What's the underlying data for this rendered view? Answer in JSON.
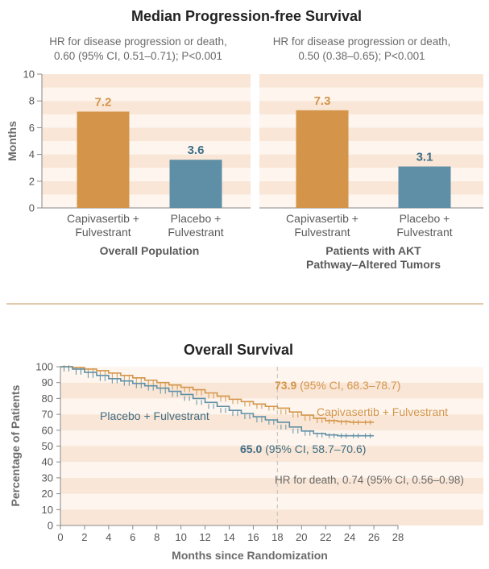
{
  "colors": {
    "capivasertib": "#D4954A",
    "placebo": "#5E8FA6",
    "placebo_text": "#3F6E86",
    "band_dark": "#F9E6D6",
    "band_light": "#FDF5EE",
    "divider": "#D9B891",
    "axis": "#888888"
  },
  "chart_data": [
    {
      "type": "bar",
      "title": "Median Progression-free Survival",
      "ylabel": "Months",
      "ylim": [
        0,
        10
      ],
      "yticks": [
        "0",
        "2",
        "4",
        "6",
        "8",
        "10"
      ],
      "panels": [
        {
          "hr_line1": "HR for disease progression or death,",
          "hr_line2": "0.60 (95% CI, 0.51–0.71); P<0.001",
          "group_line1": "Overall Population",
          "group_line2": "",
          "bars": [
            {
              "label_line1": "Capivasertib +",
              "label_line2": "Fulvestrant",
              "value": 7.2,
              "value_label": "7.2",
              "color_key": "capivasertib"
            },
            {
              "label_line1": "Placebo +",
              "label_line2": "Fulvestrant",
              "value": 3.6,
              "value_label": "3.6",
              "color_key": "placebo"
            }
          ]
        },
        {
          "hr_line1": "HR for disease progression or death,",
          "hr_line2": "0.50 (0.38–0.65); P<0.001",
          "group_line1": "Patients with AKT",
          "group_line2": "Pathway–Altered Tumors",
          "bars": [
            {
              "label_line1": "Capivasertib +",
              "label_line2": "Fulvestrant",
              "value": 7.3,
              "value_label": "7.3",
              "color_key": "capivasertib"
            },
            {
              "label_line1": "Placebo +",
              "label_line2": "Fulvestrant",
              "value": 3.1,
              "value_label": "3.1",
              "color_key": "placebo"
            }
          ]
        }
      ]
    },
    {
      "type": "line",
      "title": "Overall Survival",
      "xlabel": "Months since Randomization",
      "ylabel": "Percentage of Patients",
      "xlim": [
        0,
        28
      ],
      "ylim": [
        0,
        100
      ],
      "xticks": [
        "0",
        "2",
        "4",
        "6",
        "8",
        "10",
        "12",
        "14",
        "16",
        "18",
        "20",
        "22",
        "24",
        "26",
        "28"
      ],
      "yticks": [
        "0",
        "10",
        "20",
        "30",
        "40",
        "50",
        "60",
        "70",
        "80",
        "90",
        "100"
      ],
      "reference_month": 18,
      "hr_text": "HR for death, 0.74 (95% CI, 0.56–0.98)",
      "series": [
        {
          "name": "Capivasertib + Fulvestrant",
          "color_key": "capivasertib",
          "x": [
            0,
            1,
            2,
            3,
            4,
            5,
            6,
            7,
            8,
            9,
            10,
            11,
            12,
            13,
            14,
            15,
            16,
            17,
            18,
            19,
            20,
            21,
            22,
            23,
            24,
            25,
            26
          ],
          "y": [
            100,
            99.5,
            98.5,
            97.5,
            96,
            94.5,
            93,
            91.5,
            90,
            88.5,
            87,
            85.5,
            83.5,
            81.5,
            79.5,
            78,
            76.5,
            75,
            73.9,
            71.5,
            69.5,
            67.5,
            66,
            65.5,
            65,
            65,
            65
          ],
          "annotation_value": "73.9",
          "annotation_ci": " (95% CI, 68.3–78.7)"
        },
        {
          "name": "Placebo + Fulvestrant",
          "color_key": "placebo",
          "x": [
            0,
            1,
            2,
            3,
            4,
            5,
            6,
            7,
            8,
            9,
            10,
            11,
            12,
            13,
            14,
            15,
            16,
            17,
            18,
            19,
            20,
            21,
            22,
            23,
            24,
            25,
            26
          ],
          "y": [
            100,
            98.5,
            96.5,
            94.5,
            92.5,
            91,
            89.5,
            88,
            86.5,
            84.5,
            82.5,
            80,
            77.5,
            75,
            72.5,
            70.5,
            68.5,
            66.5,
            65.0,
            62,
            59.5,
            58,
            57,
            56.5,
            56.5,
            56.5,
            56.5
          ],
          "annotation_value": "65.0",
          "annotation_ci": " (95% CI, 58.7–70.6)"
        }
      ]
    }
  ]
}
